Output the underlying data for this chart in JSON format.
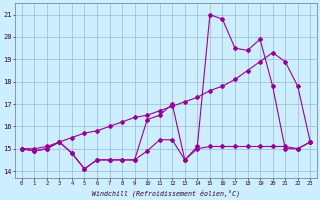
{
  "xlabel": "Windchill (Refroidissement éolien,°C)",
  "background_color": "#cceeff",
  "line_color": "#990099",
  "grid_color": "#99bbcc",
  "xlim": [
    -0.5,
    23.5
  ],
  "ylim": [
    13.7,
    21.5
  ],
  "yticks": [
    14,
    15,
    16,
    17,
    18,
    19,
    20,
    21
  ],
  "xticks": [
    0,
    1,
    2,
    3,
    4,
    5,
    6,
    7,
    8,
    9,
    10,
    11,
    12,
    13,
    14,
    15,
    16,
    17,
    18,
    19,
    20,
    21,
    22,
    23
  ],
  "series1_x": [
    0,
    1,
    2,
    3,
    4,
    5,
    6,
    7,
    8,
    9,
    10,
    11,
    12,
    13,
    14,
    15,
    16,
    17,
    18,
    19,
    20,
    21,
    22,
    23
  ],
  "series1_y": [
    15.0,
    14.9,
    15.0,
    15.3,
    14.8,
    14.1,
    14.5,
    14.5,
    14.5,
    14.5,
    14.9,
    15.4,
    15.4,
    14.5,
    15.0,
    15.1,
    15.1,
    15.1,
    15.1,
    15.1,
    15.1,
    15.1,
    15.0,
    15.3
  ],
  "series2_x": [
    0,
    1,
    2,
    3,
    4,
    5,
    6,
    7,
    8,
    9,
    10,
    11,
    12,
    13,
    14,
    15,
    16,
    17,
    18,
    19,
    20,
    21,
    22,
    23
  ],
  "series2_y": [
    15.0,
    14.9,
    15.0,
    15.3,
    14.8,
    14.1,
    14.5,
    14.5,
    14.5,
    14.5,
    16.3,
    16.5,
    17.0,
    14.5,
    15.1,
    21.0,
    20.8,
    19.5,
    19.4,
    19.9,
    17.8,
    15.0,
    15.0,
    15.3
  ],
  "series3_x": [
    0,
    1,
    2,
    3,
    4,
    5,
    6,
    7,
    8,
    9,
    10,
    11,
    12,
    13,
    14,
    15,
    16,
    17,
    18,
    19,
    20,
    21,
    22,
    23
  ],
  "series3_y": [
    15.0,
    15.0,
    15.1,
    15.3,
    15.5,
    15.7,
    15.8,
    16.0,
    16.2,
    16.4,
    16.5,
    16.7,
    16.9,
    17.1,
    17.3,
    17.6,
    17.8,
    18.1,
    18.5,
    18.9,
    19.3,
    18.9,
    17.8,
    15.3
  ]
}
